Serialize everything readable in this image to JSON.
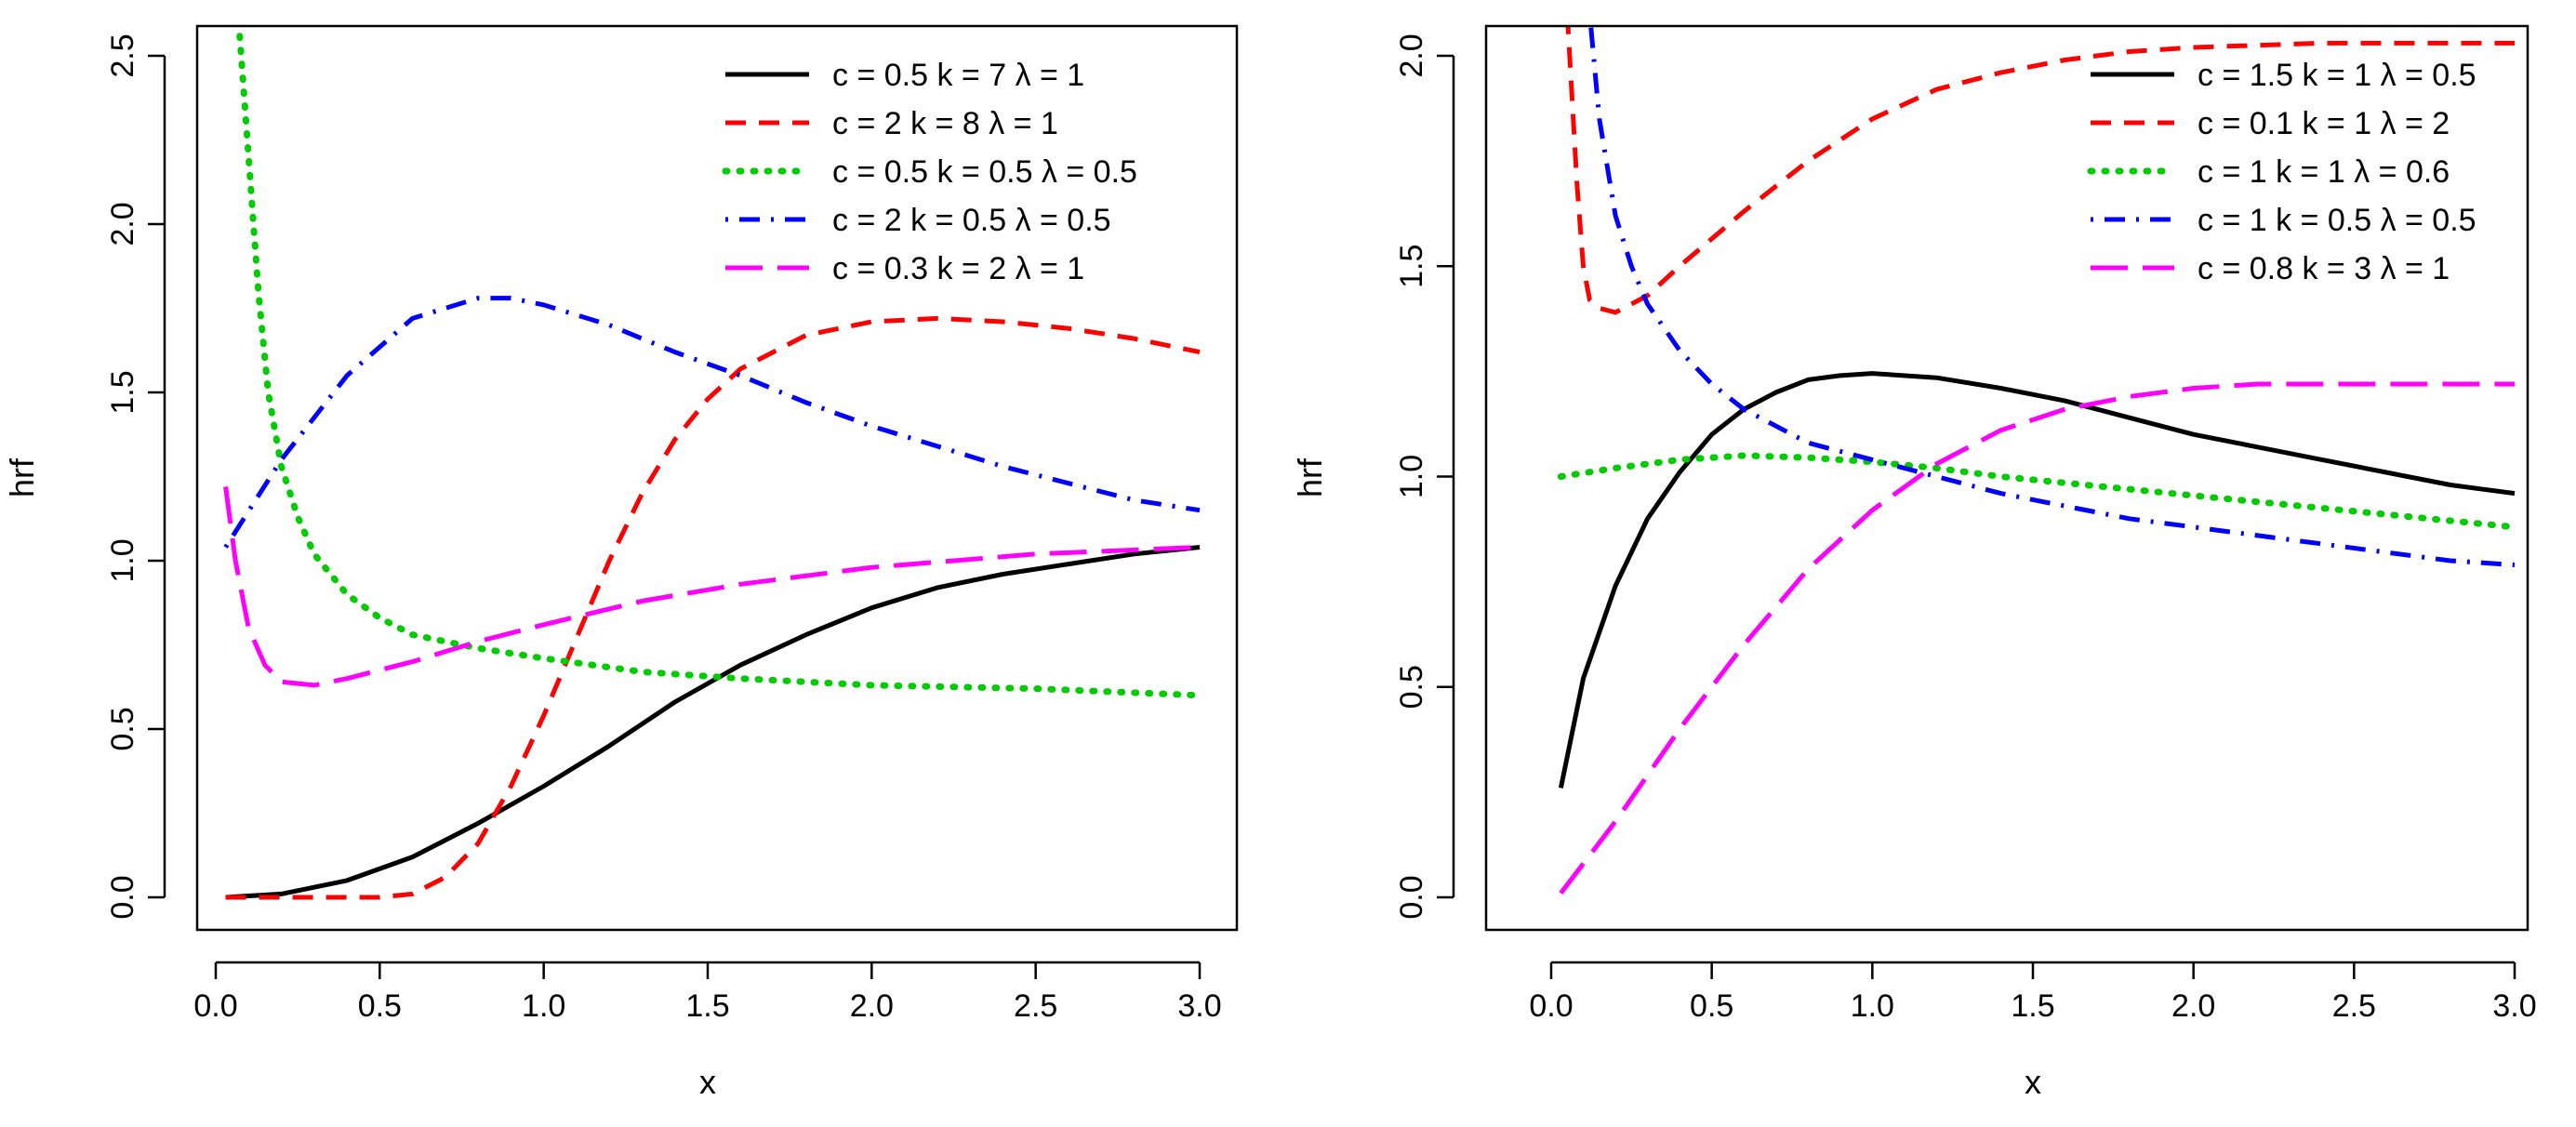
{
  "chart_data": [
    {
      "type": "line",
      "title": "",
      "xlabel": "x",
      "ylabel": "hrf",
      "xlim": [
        0,
        3
      ],
      "ylim": [
        0,
        2.5
      ],
      "xticks": [
        "0.0",
        "0.5",
        "1.0",
        "1.5",
        "2.0",
        "2.5",
        "3.0"
      ],
      "yticks": [
        "0.0",
        "0.5",
        "1.0",
        "1.5",
        "2.0",
        "2.5"
      ],
      "legend_position": "top-right",
      "series": [
        {
          "name": "c = 0.5  k = 7  λ = 1",
          "color": "#000000",
          "style": "solid",
          "x": [
            0.03,
            0.2,
            0.4,
            0.6,
            0.8,
            1.0,
            1.2,
            1.4,
            1.6,
            1.8,
            2.0,
            2.2,
            2.4,
            2.6,
            2.8,
            3.0
          ],
          "y": [
            0.0,
            0.01,
            0.05,
            0.12,
            0.22,
            0.33,
            0.45,
            0.58,
            0.69,
            0.78,
            0.86,
            0.92,
            0.96,
            0.99,
            1.02,
            1.04
          ]
        },
        {
          "name": "c = 2  k = 8  λ = 1",
          "color": "#ff0000",
          "style": "dashed",
          "x": [
            0.03,
            0.3,
            0.5,
            0.6,
            0.7,
            0.8,
            0.9,
            1.0,
            1.1,
            1.2,
            1.3,
            1.4,
            1.5,
            1.6,
            1.8,
            2.0,
            2.2,
            2.4,
            2.6,
            2.8,
            3.0
          ],
          "y": [
            0.0,
            0.0,
            0.0,
            0.01,
            0.06,
            0.16,
            0.33,
            0.54,
            0.77,
            1.0,
            1.2,
            1.36,
            1.48,
            1.57,
            1.67,
            1.71,
            1.72,
            1.71,
            1.69,
            1.66,
            1.62
          ]
        },
        {
          "name": "c = 0.5  k = 0.5  λ = 0.5",
          "color": "#00cc00",
          "style": "dotted",
          "x": [
            0.07,
            0.1,
            0.13,
            0.16,
            0.2,
            0.25,
            0.3,
            0.4,
            0.5,
            0.6,
            0.8,
            1.0,
            1.3,
            1.6,
            2.0,
            2.5,
            3.0
          ],
          "y": [
            2.6,
            2.2,
            1.8,
            1.5,
            1.28,
            1.13,
            1.02,
            0.9,
            0.83,
            0.78,
            0.74,
            0.71,
            0.67,
            0.65,
            0.63,
            0.62,
            0.6
          ]
        },
        {
          "name": "c = 2  k = 0.5  λ = 0.5",
          "color": "#0000ff",
          "style": "dashdot",
          "x": [
            0.03,
            0.2,
            0.4,
            0.6,
            0.8,
            0.9,
            1.0,
            1.2,
            1.4,
            1.6,
            1.8,
            2.0,
            2.2,
            2.4,
            2.6,
            2.8,
            3.0
          ],
          "y": [
            1.04,
            1.3,
            1.55,
            1.72,
            1.78,
            1.78,
            1.76,
            1.7,
            1.62,
            1.55,
            1.47,
            1.4,
            1.34,
            1.28,
            1.23,
            1.18,
            1.15
          ]
        },
        {
          "name": "c = 0.3  k = 2  λ = 1",
          "color": "#ff00ff",
          "style": "longdash",
          "x": [
            0.03,
            0.06,
            0.1,
            0.15,
            0.2,
            0.3,
            0.4,
            0.6,
            0.8,
            1.0,
            1.3,
            1.6,
            2.0,
            2.5,
            3.0
          ],
          "y": [
            1.22,
            1.0,
            0.8,
            0.69,
            0.64,
            0.63,
            0.65,
            0.7,
            0.76,
            0.81,
            0.88,
            0.93,
            0.98,
            1.02,
            1.04
          ]
        }
      ]
    },
    {
      "type": "line",
      "title": "",
      "xlabel": "x",
      "ylabel": "hrf",
      "xlim": [
        0,
        3
      ],
      "ylim": [
        0,
        2.0
      ],
      "xticks": [
        "0.0",
        "0.5",
        "1.0",
        "1.5",
        "2.0",
        "2.5",
        "3.0"
      ],
      "yticks": [
        "0.0",
        "0.5",
        "1.0",
        "1.5",
        "2.0"
      ],
      "legend_position": "top-right",
      "series": [
        {
          "name": "c = 1.5  k = 1  λ = 0.5",
          "color": "#000000",
          "style": "solid",
          "x": [
            0.03,
            0.1,
            0.2,
            0.3,
            0.4,
            0.5,
            0.6,
            0.7,
            0.8,
            0.9,
            1.0,
            1.2,
            1.4,
            1.6,
            1.8,
            2.0,
            2.2,
            2.4,
            2.6,
            2.8,
            3.0
          ],
          "y": [
            0.26,
            0.52,
            0.74,
            0.9,
            1.01,
            1.1,
            1.16,
            1.2,
            1.23,
            1.24,
            1.245,
            1.235,
            1.21,
            1.18,
            1.14,
            1.1,
            1.07,
            1.04,
            1.01,
            0.98,
            0.96
          ]
        },
        {
          "name": "c = 0.1  k = 1  λ = 2",
          "color": "#ff0000",
          "style": "dashed",
          "x": [
            0.05,
            0.08,
            0.1,
            0.12,
            0.15,
            0.2,
            0.3,
            0.4,
            0.6,
            0.8,
            1.0,
            1.2,
            1.4,
            1.6,
            1.8,
            2.0,
            2.4,
            2.8,
            3.0
          ],
          "y": [
            2.1,
            1.7,
            1.5,
            1.42,
            1.4,
            1.39,
            1.43,
            1.5,
            1.63,
            1.75,
            1.85,
            1.92,
            1.96,
            1.99,
            2.01,
            2.02,
            2.03,
            2.03,
            2.03
          ]
        },
        {
          "name": "c = 1  k = 1  λ = 0.6",
          "color": "#00cc00",
          "style": "dotted",
          "x": [
            0.03,
            0.2,
            0.4,
            0.6,
            0.8,
            1.0,
            1.2,
            1.4,
            1.6,
            1.8,
            2.0,
            2.2,
            2.4,
            2.6,
            2.8,
            3.0
          ],
          "y": [
            1.0,
            1.02,
            1.04,
            1.05,
            1.045,
            1.035,
            1.02,
            1.0,
            0.985,
            0.97,
            0.955,
            0.94,
            0.925,
            0.91,
            0.895,
            0.88
          ]
        },
        {
          "name": "c = 1  k = 0.5  λ = 0.5",
          "color": "#0000ff",
          "style": "dashdot",
          "x": [
            0.12,
            0.15,
            0.2,
            0.25,
            0.3,
            0.4,
            0.5,
            0.6,
            0.8,
            1.0,
            1.2,
            1.4,
            1.6,
            1.8,
            2.0,
            2.2,
            2.4,
            2.6,
            2.8,
            3.0
          ],
          "y": [
            2.1,
            1.85,
            1.62,
            1.5,
            1.41,
            1.3,
            1.22,
            1.16,
            1.08,
            1.04,
            1.0,
            0.96,
            0.93,
            0.9,
            0.88,
            0.86,
            0.84,
            0.82,
            0.8,
            0.79
          ]
        },
        {
          "name": "c = 0.8  k = 3  λ = 1",
          "color": "#ff00ff",
          "style": "longdash",
          "x": [
            0.03,
            0.2,
            0.4,
            0.6,
            0.8,
            1.0,
            1.2,
            1.4,
            1.6,
            1.8,
            2.0,
            2.2,
            2.4,
            2.6,
            2.8,
            3.0
          ],
          "y": [
            0.01,
            0.18,
            0.4,
            0.6,
            0.78,
            0.92,
            1.03,
            1.11,
            1.16,
            1.19,
            1.21,
            1.22,
            1.22,
            1.22,
            1.22,
            1.22
          ]
        }
      ]
    }
  ]
}
